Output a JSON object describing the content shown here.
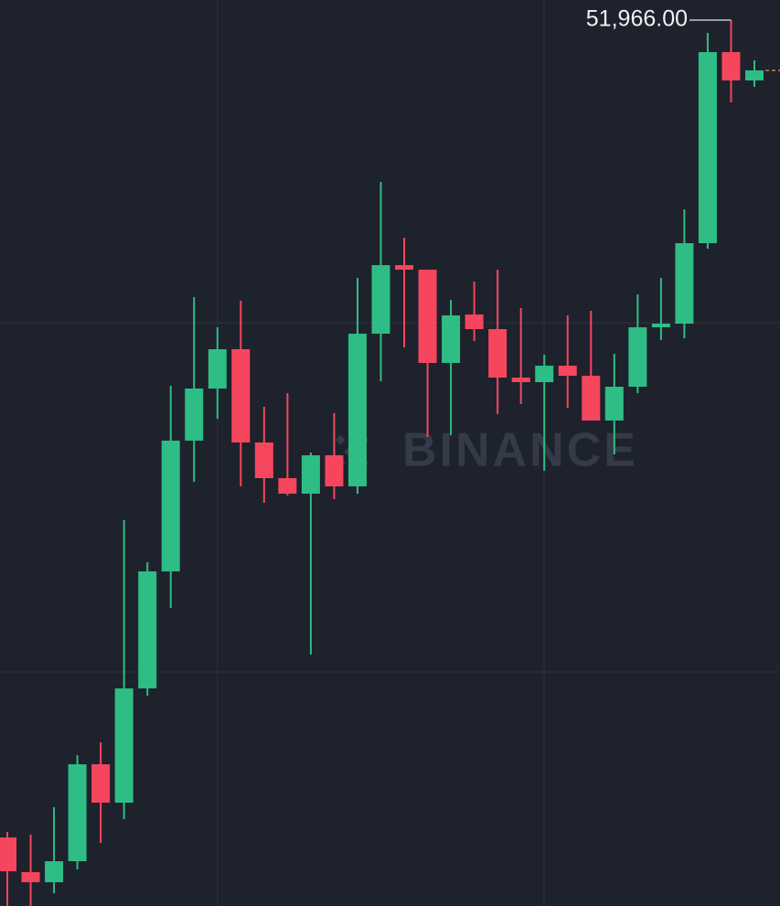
{
  "chart_data": {
    "type": "candlestick",
    "open": [
      43026,
      42646,
      42536,
      42766,
      43826,
      43406,
      44656,
      45936,
      47366,
      47936,
      48366,
      47346,
      46956,
      46786,
      47206,
      46866,
      48536,
      49286,
      49236,
      48216,
      48746,
      48586,
      48056,
      48006,
      48186,
      48076,
      47586,
      47956,
      48606,
      48646,
      49526,
      51616,
      51306
    ],
    "high": [
      43086,
      43056,
      43356,
      43926,
      44066,
      46496,
      46036,
      47966,
      48936,
      48606,
      48896,
      47736,
      47886,
      47236,
      47666,
      49146,
      50196,
      49586,
      49236,
      48906,
      49106,
      49236,
      48816,
      48306,
      48736,
      48786,
      48316,
      48966,
      49146,
      49896,
      51826,
      51966,
      51526
    ],
    "low": [
      42276,
      42276,
      42416,
      42676,
      42966,
      43226,
      44576,
      45536,
      46916,
      47606,
      46866,
      46686,
      46766,
      45026,
      46726,
      46786,
      48016,
      48386,
      47406,
      47426,
      48456,
      47656,
      47766,
      47036,
      47726,
      47586,
      47216,
      47886,
      48466,
      48486,
      49466,
      51066,
      51236
    ],
    "close": [
      42656,
      42536,
      42766,
      43826,
      43406,
      44656,
      45936,
      47366,
      47936,
      48366,
      47346,
      46956,
      46786,
      47206,
      46866,
      48536,
      49286,
      49236,
      48216,
      48736,
      48586,
      48056,
      48006,
      48186,
      48076,
      47586,
      47956,
      48606,
      48646,
      49526,
      51616,
      51306,
      51416
    ],
    "up_color": "#2ebd85",
    "down_color": "#f6465d",
    "ylim": [
      42276,
      52186
    ],
    "annotation": {
      "value": 51966,
      "label": "51,966.00"
    },
    "watermark": "BINANCE"
  }
}
